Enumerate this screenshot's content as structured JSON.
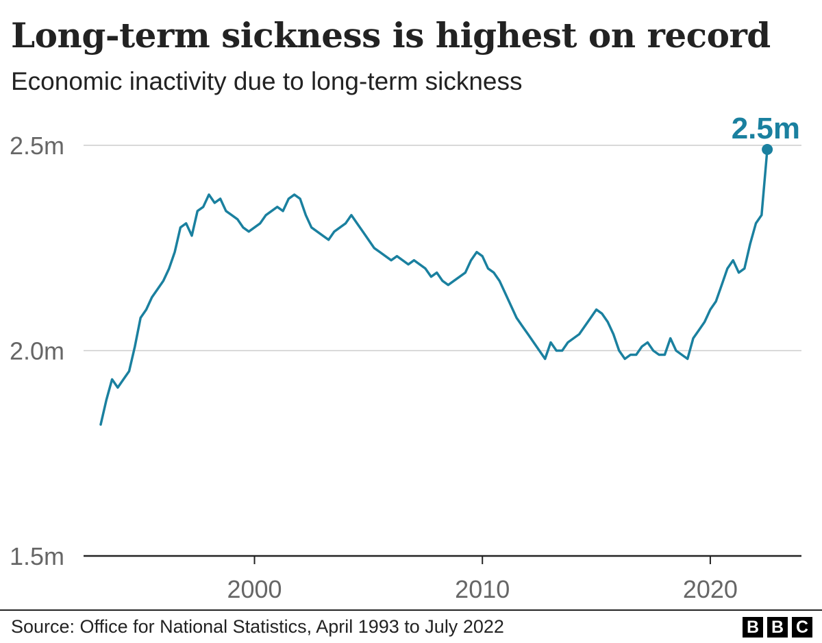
{
  "title": "Long-term sickness is highest on record",
  "subtitle": "Economic inactivity due to long-term sickness",
  "source": "Source: Office for National Statistics, April 1993 to July 2022",
  "logo": [
    "B",
    "B",
    "C"
  ],
  "colors": {
    "line": "#1a809f",
    "text": "#222222",
    "axis_text": "#666666",
    "grid": "#cccccc",
    "baseline": "#222222"
  },
  "chart_data": {
    "type": "line",
    "title": "Long-term sickness is highest on record",
    "subtitle": "Economic inactivity due to long-term sickness",
    "xlabel": "",
    "ylabel": "",
    "ylim": [
      1.5,
      2.5
    ],
    "xlim": [
      1992.5,
      2024
    ],
    "y_ticks": [
      {
        "value": 2.5,
        "label": "2.5m"
      },
      {
        "value": 2.0,
        "label": "2.0m"
      },
      {
        "value": 1.5,
        "label": "1.5m"
      }
    ],
    "x_ticks": [
      {
        "value": 2000,
        "label": "2000"
      },
      {
        "value": 2010,
        "label": "2010"
      },
      {
        "value": 2020,
        "label": "2020"
      }
    ],
    "grid": "horizontal",
    "annotation": {
      "label": "2.5m",
      "x": 2022.5,
      "y": 2.49
    },
    "series": [
      {
        "x": [
          1993.25,
          1993.5,
          1993.75,
          1994.0,
          1994.25,
          1994.5,
          1994.75,
          1995.0,
          1995.25,
          1995.5,
          1995.75,
          1996.0,
          1996.25,
          1996.5,
          1996.75,
          1997.0,
          1997.25,
          1997.5,
          1997.75,
          1998.0,
          1998.25,
          1998.5,
          1998.75,
          1999.0,
          1999.25,
          1999.5,
          1999.75,
          2000.0,
          2000.25,
          2000.5,
          2000.75,
          2001.0,
          2001.25,
          2001.5,
          2001.75,
          2002.0,
          2002.25,
          2002.5,
          2002.75,
          2003.0,
          2003.25,
          2003.5,
          2003.75,
          2004.0,
          2004.25,
          2004.5,
          2004.75,
          2005.0,
          2005.25,
          2005.5,
          2005.75,
          2006.0,
          2006.25,
          2006.5,
          2006.75,
          2007.0,
          2007.25,
          2007.5,
          2007.75,
          2008.0,
          2008.25,
          2008.5,
          2008.75,
          2009.0,
          2009.25,
          2009.5,
          2009.75,
          2010.0,
          2010.25,
          2010.5,
          2010.75,
          2011.0,
          2011.25,
          2011.5,
          2011.75,
          2012.0,
          2012.25,
          2012.5,
          2012.75,
          2013.0,
          2013.25,
          2013.5,
          2013.75,
          2014.0,
          2014.25,
          2014.5,
          2014.75,
          2015.0,
          2015.25,
          2015.5,
          2015.75,
          2016.0,
          2016.25,
          2016.5,
          2016.75,
          2017.0,
          2017.25,
          2017.5,
          2017.75,
          2018.0,
          2018.25,
          2018.5,
          2018.75,
          2019.0,
          2019.25,
          2019.5,
          2019.75,
          2020.0,
          2020.25,
          2020.5,
          2020.75,
          2021.0,
          2021.25,
          2021.5,
          2021.75,
          2022.0,
          2022.25,
          2022.5
        ],
        "values": [
          1.82,
          1.88,
          1.93,
          1.91,
          1.93,
          1.95,
          2.01,
          2.08,
          2.1,
          2.13,
          2.15,
          2.17,
          2.2,
          2.24,
          2.3,
          2.31,
          2.28,
          2.34,
          2.35,
          2.38,
          2.36,
          2.37,
          2.34,
          2.33,
          2.32,
          2.3,
          2.29,
          2.3,
          2.31,
          2.33,
          2.34,
          2.35,
          2.34,
          2.37,
          2.38,
          2.37,
          2.33,
          2.3,
          2.29,
          2.28,
          2.27,
          2.29,
          2.3,
          2.31,
          2.33,
          2.31,
          2.29,
          2.27,
          2.25,
          2.24,
          2.23,
          2.22,
          2.23,
          2.22,
          2.21,
          2.22,
          2.21,
          2.2,
          2.18,
          2.19,
          2.17,
          2.16,
          2.17,
          2.18,
          2.19,
          2.22,
          2.24,
          2.23,
          2.2,
          2.19,
          2.17,
          2.14,
          2.11,
          2.08,
          2.06,
          2.04,
          2.02,
          2.0,
          1.98,
          2.02,
          2.0,
          2.0,
          2.02,
          2.03,
          2.04,
          2.06,
          2.08,
          2.1,
          2.09,
          2.07,
          2.04,
          2.0,
          1.98,
          1.99,
          1.99,
          2.01,
          2.02,
          2.0,
          1.99,
          1.99,
          2.03,
          2.0,
          1.99,
          1.98,
          2.03,
          2.05,
          2.07,
          2.1,
          2.12,
          2.16,
          2.2,
          2.22,
          2.19,
          2.2,
          2.26,
          2.31,
          2.33,
          2.49
        ]
      }
    ]
  }
}
